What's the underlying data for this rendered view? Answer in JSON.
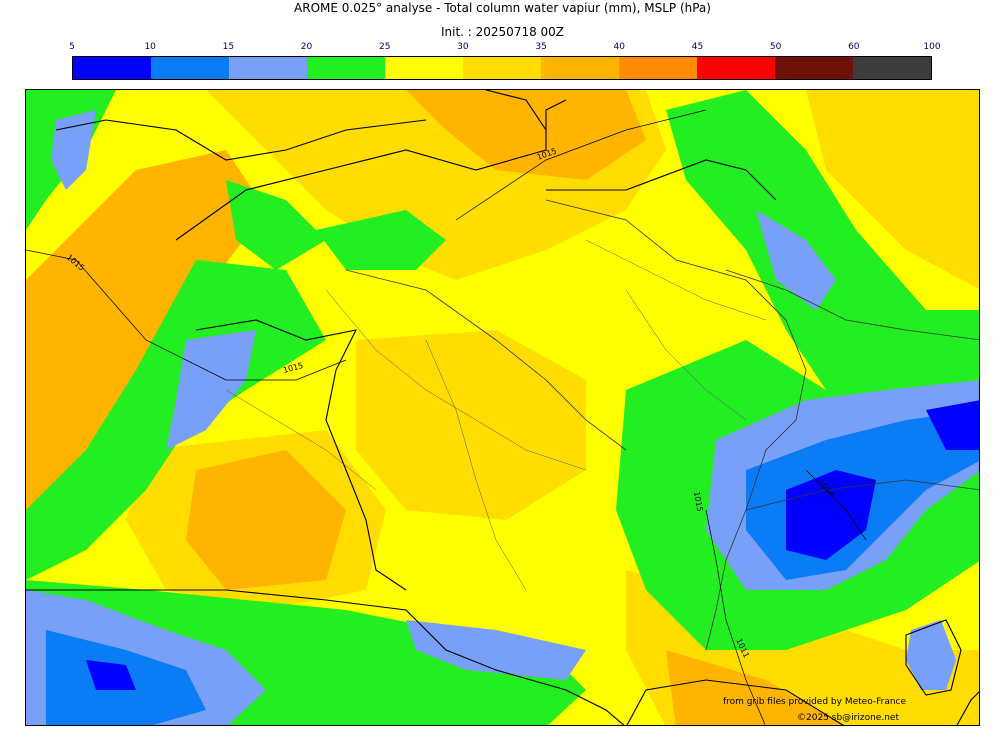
{
  "title": "AROME 0.025° analyse - Total column water vapiur (mm), MSLP (hPa)",
  "subtitle": "Init. : 20250718 00Z",
  "legend": {
    "ticks": [
      "5",
      "10",
      "15",
      "20",
      "25",
      "30",
      "35",
      "40",
      "45",
      "50",
      "60",
      "100"
    ],
    "colors": [
      "#0000ff",
      "#0a7cf6",
      "#78a0f8",
      "#22ee22",
      "#ffff00",
      "#ffdd00",
      "#ffb400",
      "#ff8c00",
      "#ff0000",
      "#6e0f08",
      "#3c3c3c"
    ]
  },
  "isobar_labels": [
    "1015",
    "1015",
    "1015",
    "1015",
    "1014",
    "1011"
  ],
  "credits": {
    "source": "from grib files provided by Meteo-France",
    "copyright": "©2025 sb@irizone.net"
  }
}
